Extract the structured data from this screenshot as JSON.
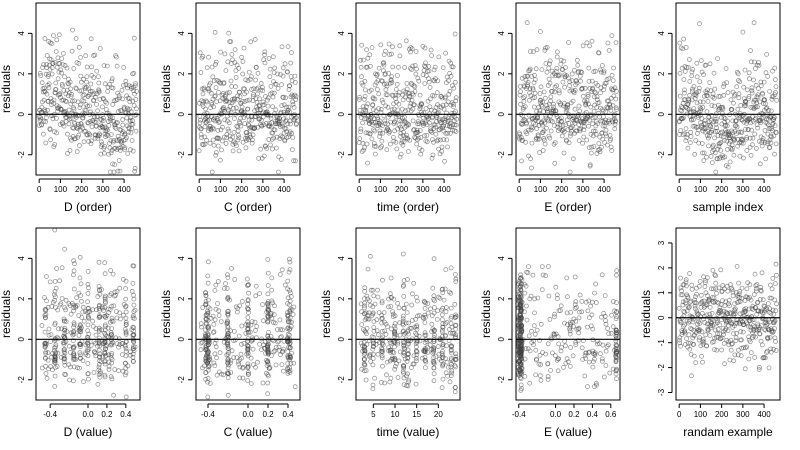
{
  "figure": {
    "ylabel": "residuals"
  },
  "chart_data": [
    {
      "id": "p11",
      "type": "scatter",
      "xlabel": "D (order)",
      "ylabel": "residuals",
      "xlim": [
        -15,
        475
      ],
      "ylim": [
        -3,
        5.5
      ],
      "xticks": [
        0,
        100,
        200,
        300,
        400
      ],
      "yticks": [
        -2,
        0,
        2,
        4
      ],
      "zero_line": true,
      "n": 460,
      "pattern": "order",
      "waves": [
        [
          1.2,
          80,
          0.35
        ],
        [
          0.6,
          37,
          1.1
        ]
      ],
      "spread": 1.2,
      "seed": 11
    },
    {
      "id": "p12",
      "type": "scatter",
      "xlabel": "C (order)",
      "ylabel": "residuals",
      "xlim": [
        -15,
        475
      ],
      "ylim": [
        -3,
        5.5
      ],
      "xticks": [
        0,
        100,
        200,
        300,
        400
      ],
      "yticks": [
        -2,
        0,
        2,
        4
      ],
      "zero_line": true,
      "n": 460,
      "pattern": "order",
      "waves": [
        [
          0.15,
          150,
          0.2
        ]
      ],
      "spread": 1.3,
      "seed": 12
    },
    {
      "id": "p13",
      "type": "scatter",
      "xlabel": "time (order)",
      "ylabel": "residuals",
      "xlim": [
        -15,
        475
      ],
      "ylim": [
        -3,
        5.5
      ],
      "xticks": [
        0,
        100,
        200,
        300,
        400
      ],
      "yticks": [
        -2,
        0,
        2,
        4
      ],
      "zero_line": true,
      "n": 460,
      "pattern": "order",
      "waves": [
        [
          0.2,
          120,
          0.9
        ]
      ],
      "spread": 1.3,
      "seed": 13
    },
    {
      "id": "p14",
      "type": "scatter",
      "xlabel": "E (order)",
      "ylabel": "residuals",
      "xlim": [
        -15,
        475
      ],
      "ylim": [
        -3,
        5.5
      ],
      "xticks": [
        0,
        100,
        200,
        300,
        400
      ],
      "yticks": [
        -2,
        0,
        2,
        4
      ],
      "zero_line": true,
      "n": 460,
      "pattern": "order",
      "waves": [
        [
          0.15,
          90,
          0.4
        ]
      ],
      "spread": 1.3,
      "seed": 14
    },
    {
      "id": "p15",
      "type": "scatter",
      "xlabel": "sample index",
      "ylabel": "residuals",
      "xlim": [
        -15,
        475
      ],
      "ylim": [
        -3,
        5.5
      ],
      "xticks": [
        0,
        100,
        200,
        300,
        400
      ],
      "yticks": [
        -2,
        0,
        2,
        4
      ],
      "zero_line": true,
      "n": 460,
      "pattern": "order",
      "waves": [
        [
          1.0,
          110,
          2.4
        ],
        [
          0.4,
          45,
          0.3
        ]
      ],
      "spread": 1.2,
      "seed": 15
    },
    {
      "id": "p21",
      "type": "scatter",
      "xlabel": "D (value)",
      "ylabel": "residuals",
      "xlim": [
        -0.55,
        0.55
      ],
      "ylim": [
        -3,
        5.5
      ],
      "xticks": [
        -0.4,
        0.0,
        0.2,
        0.4
      ],
      "yticks": [
        -2,
        0,
        2,
        4
      ],
      "zero_line": true,
      "n": 460,
      "pattern": "value",
      "x_range": [
        -0.5,
        0.5
      ],
      "clusters": [
        -0.45,
        -0.35,
        -0.25,
        -0.15,
        -0.08,
        0.0,
        0.12,
        0.18,
        0.25,
        0.4,
        0.48
      ],
      "spread": 1.25,
      "seed": 21
    },
    {
      "id": "p22",
      "type": "scatter",
      "xlabel": "C (value)",
      "ylabel": "residuals",
      "xlim": [
        -0.52,
        0.52
      ],
      "ylim": [
        -3,
        5.5
      ],
      "xticks": [
        -0.4,
        0.0,
        0.2,
        0.4
      ],
      "yticks": [
        -2,
        0,
        2,
        4
      ],
      "zero_line": true,
      "n": 460,
      "pattern": "value",
      "x_range": [
        -0.48,
        0.48
      ],
      "clusters": [
        -0.42,
        -0.4,
        -0.2,
        0.0,
        0.2,
        0.4,
        0.42
      ],
      "spread": 1.3,
      "seed": 22
    },
    {
      "id": "p23",
      "type": "scatter",
      "xlabel": "time (value)",
      "ylabel": "residuals",
      "xlim": [
        1,
        25
      ],
      "ylim": [
        -3,
        5.5
      ],
      "xticks": [
        5,
        10,
        15,
        20
      ],
      "yticks": [
        -2,
        0,
        2,
        4
      ],
      "zero_line": true,
      "n": 460,
      "pattern": "value",
      "x_range": [
        2,
        24
      ],
      "clusters": [
        3,
        5,
        7,
        9,
        10,
        12,
        13,
        15,
        17,
        19,
        21,
        23,
        24
      ],
      "spread": 1.3,
      "seed": 23
    },
    {
      "id": "p24",
      "type": "scatter",
      "xlabel": "E (value)",
      "ylabel": "residuals",
      "xlim": [
        -0.43,
        0.7
      ],
      "ylim": [
        -3,
        5.5
      ],
      "xticks": [
        -0.4,
        0.0,
        0.2,
        0.4,
        0.6
      ],
      "yticks": [
        -2,
        0,
        2,
        4
      ],
      "zero_line": true,
      "n": 460,
      "pattern": "value",
      "x_range": [
        -0.4,
        0.66
      ],
      "clusters": [
        -0.4,
        -0.39,
        -0.38,
        -0.38,
        -0.37,
        0.66
      ],
      "spread": 1.3,
      "seed": 24
    },
    {
      "id": "p25",
      "type": "scatter",
      "xlabel": "randam example",
      "ylabel": "residuals",
      "xlim": [
        -15,
        475
      ],
      "ylim": [
        -3.3,
        3.6
      ],
      "xticks": [
        0,
        100,
        200,
        300,
        400
      ],
      "yticks": [
        -3,
        -2,
        -1,
        0,
        1,
        2,
        3
      ],
      "zero_line": true,
      "n": 460,
      "pattern": "normal",
      "spread": 1.0,
      "seed": 25
    }
  ]
}
